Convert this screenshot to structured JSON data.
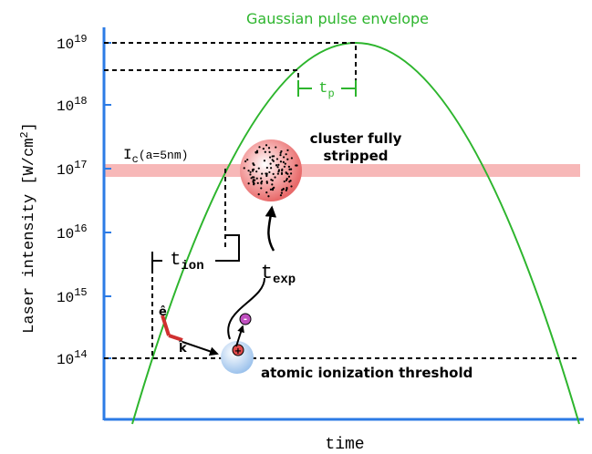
{
  "title": "Gaussian pulse envelope",
  "y_axis": {
    "label": "Laser intensity [W/cm",
    "label_sup": "2",
    "label_end": "]",
    "ticks": [
      {
        "base": "10",
        "exponent": "19"
      },
      {
        "base": "10",
        "exponent": "18"
      },
      {
        "base": "10",
        "exponent": "17"
      },
      {
        "base": "10",
        "exponent": "16"
      },
      {
        "base": "10",
        "exponent": "15"
      },
      {
        "base": "10",
        "exponent": "14"
      }
    ]
  },
  "x_axis": {
    "label": "time"
  },
  "annotations": {
    "critical": {
      "main": "I",
      "sub": "c",
      "rest": "(a=5nm)"
    },
    "pulse_width": {
      "main": "t",
      "sub": "p"
    },
    "ionization_time": {
      "main": "t",
      "sub": "ion"
    },
    "expansion_time": {
      "main": "t",
      "sub": "exp"
    },
    "cluster": [
      "cluster fully",
      "stripped"
    ],
    "threshold": "atomic ionization threshold",
    "e_vector": "ê",
    "k_vector": "k̂",
    "electron": "-",
    "ion": "+"
  }
}
